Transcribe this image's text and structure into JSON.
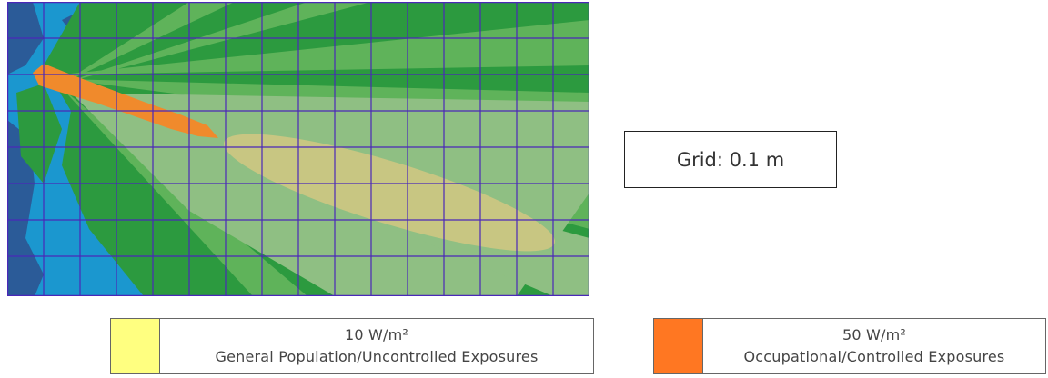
{
  "grid_label": "Grid: 0.1 m",
  "legend": [
    {
      "value": "10 W/m²",
      "description": "General Population/Uncontrolled Exposures",
      "color": "#ffff80"
    },
    {
      "value": "50 W/m²",
      "description": "Occupational/Controlled Exposures",
      "color": "#ff7722"
    }
  ],
  "colors": {
    "dark_blue": "#2b5b98",
    "light_blue": "#1b97cf",
    "dark_green": "#2c9a3f",
    "mid_green": "#5fb35a",
    "pale_green": "#8fbf83",
    "yellow_zone": "#c8c682",
    "orange_zone": "#f08a2c",
    "grid_lines": "#4a28b8"
  }
}
